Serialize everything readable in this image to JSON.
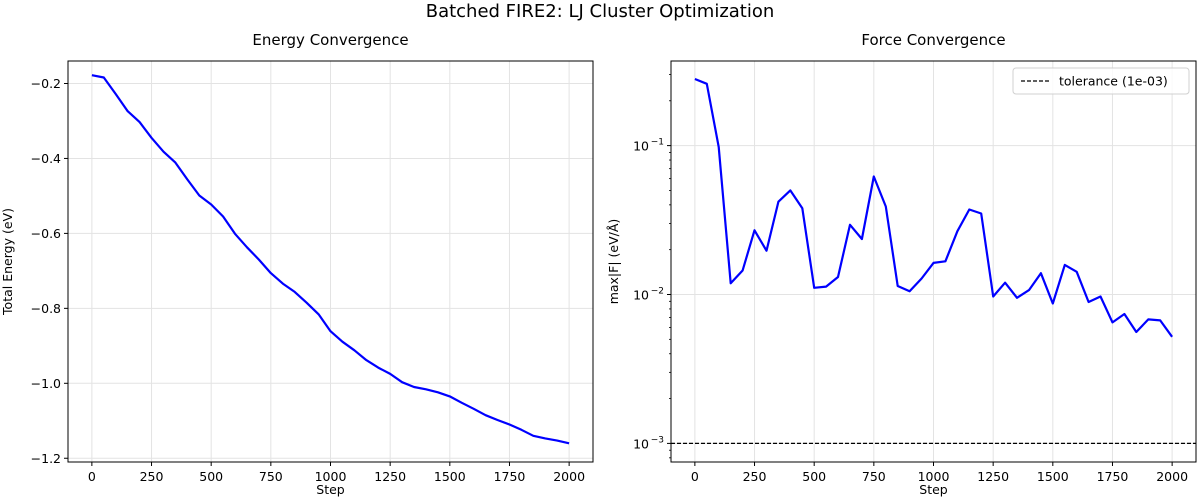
{
  "figure": {
    "suptitle": "Batched FIRE2: LJ Cluster Optimization"
  },
  "chart_data": [
    {
      "type": "line",
      "title": "Energy Convergence",
      "xlabel": "Step",
      "ylabel": "Total Energy (eV)",
      "xlim": [
        -100,
        2100
      ],
      "ylim": [
        -1.21,
        -0.14
      ],
      "xticks": [
        0,
        250,
        500,
        750,
        1000,
        1250,
        1500,
        1750,
        2000
      ],
      "xtick_labels": [
        "0",
        "250",
        "500",
        "750",
        "1000",
        "1250",
        "1500",
        "1750",
        "2000"
      ],
      "yticks": [
        -1.2,
        -1.0,
        -0.8,
        -0.6,
        -0.4,
        -0.2
      ],
      "ytick_labels": [
        "−1.2",
        "−1.0",
        "−0.8",
        "−0.6",
        "−0.4",
        "−0.2"
      ],
      "grid": true,
      "color": "#0000ff",
      "x": [
        0,
        50,
        100,
        150,
        200,
        250,
        300,
        350,
        400,
        450,
        500,
        550,
        600,
        650,
        700,
        750,
        800,
        850,
        900,
        950,
        1000,
        1050,
        1100,
        1150,
        1200,
        1250,
        1300,
        1350,
        1400,
        1450,
        1500,
        1550,
        1600,
        1650,
        1700,
        1750,
        1800,
        1850,
        1900,
        1950,
        2000
      ],
      "series": [
        {
          "name": "Total Energy",
          "values": [
            -0.178,
            -0.184,
            -0.228,
            -0.274,
            -0.303,
            -0.345,
            -0.382,
            -0.411,
            -0.456,
            -0.499,
            -0.523,
            -0.555,
            -0.601,
            -0.637,
            -0.67,
            -0.706,
            -0.734,
            -0.756,
            -0.785,
            -0.816,
            -0.861,
            -0.889,
            -0.912,
            -0.938,
            -0.958,
            -0.975,
            -0.997,
            -1.01,
            -1.016,
            -1.024,
            -1.035,
            -1.052,
            -1.068,
            -1.085,
            -1.098,
            -1.11,
            -1.124,
            -1.14,
            -1.147,
            -1.153,
            -1.16
          ]
        }
      ]
    },
    {
      "type": "line",
      "title": "Force Convergence",
      "xlabel": "Step",
      "ylabel": "max|F| (eV/Å)",
      "yscale": "log",
      "xlim": [
        -100,
        2100
      ],
      "ylim": [
        0.00075,
        0.37
      ],
      "xticks": [
        0,
        250,
        500,
        750,
        1000,
        1250,
        1500,
        1750,
        2000
      ],
      "xtick_labels": [
        "0",
        "250",
        "500",
        "750",
        "1000",
        "1250",
        "1500",
        "1750",
        "2000"
      ],
      "yticks": [
        0.001,
        0.01,
        0.1
      ],
      "ytick_labels": [
        {
          "base": "10",
          "exp": "−3"
        },
        {
          "base": "10",
          "exp": "−2"
        },
        {
          "base": "10",
          "exp": "−1"
        }
      ],
      "grid": true,
      "color": "#0000ff",
      "legend": {
        "position": "upper right",
        "entries": [
          {
            "label": "tolerance (1e-03)",
            "style": "dashed",
            "color": "#000000"
          }
        ]
      },
      "tolerance": 0.001,
      "x": [
        0,
        50,
        100,
        150,
        200,
        250,
        300,
        350,
        400,
        450,
        500,
        550,
        600,
        650,
        700,
        750,
        800,
        850,
        900,
        950,
        1000,
        1050,
        1100,
        1150,
        1200,
        1250,
        1300,
        1350,
        1400,
        1450,
        1500,
        1550,
        1600,
        1650,
        1700,
        1750,
        1800,
        1850,
        1900,
        1950,
        2000
      ],
      "series": [
        {
          "name": "max|F|",
          "values": [
            0.28,
            0.26,
            0.098,
            0.0119,
            0.0145,
            0.027,
            0.0197,
            0.042,
            0.05,
            0.038,
            0.0111,
            0.0113,
            0.0131,
            0.0294,
            0.0236,
            0.062,
            0.039,
            0.0114,
            0.0105,
            0.0128,
            0.0163,
            0.0167,
            0.0266,
            0.0372,
            0.035,
            0.0097,
            0.012,
            0.0095,
            0.0107,
            0.0139,
            0.0087,
            0.0158,
            0.0142,
            0.0089,
            0.0097,
            0.0065,
            0.0074,
            0.0056,
            0.0068,
            0.0067,
            0.0052
          ]
        }
      ]
    }
  ]
}
